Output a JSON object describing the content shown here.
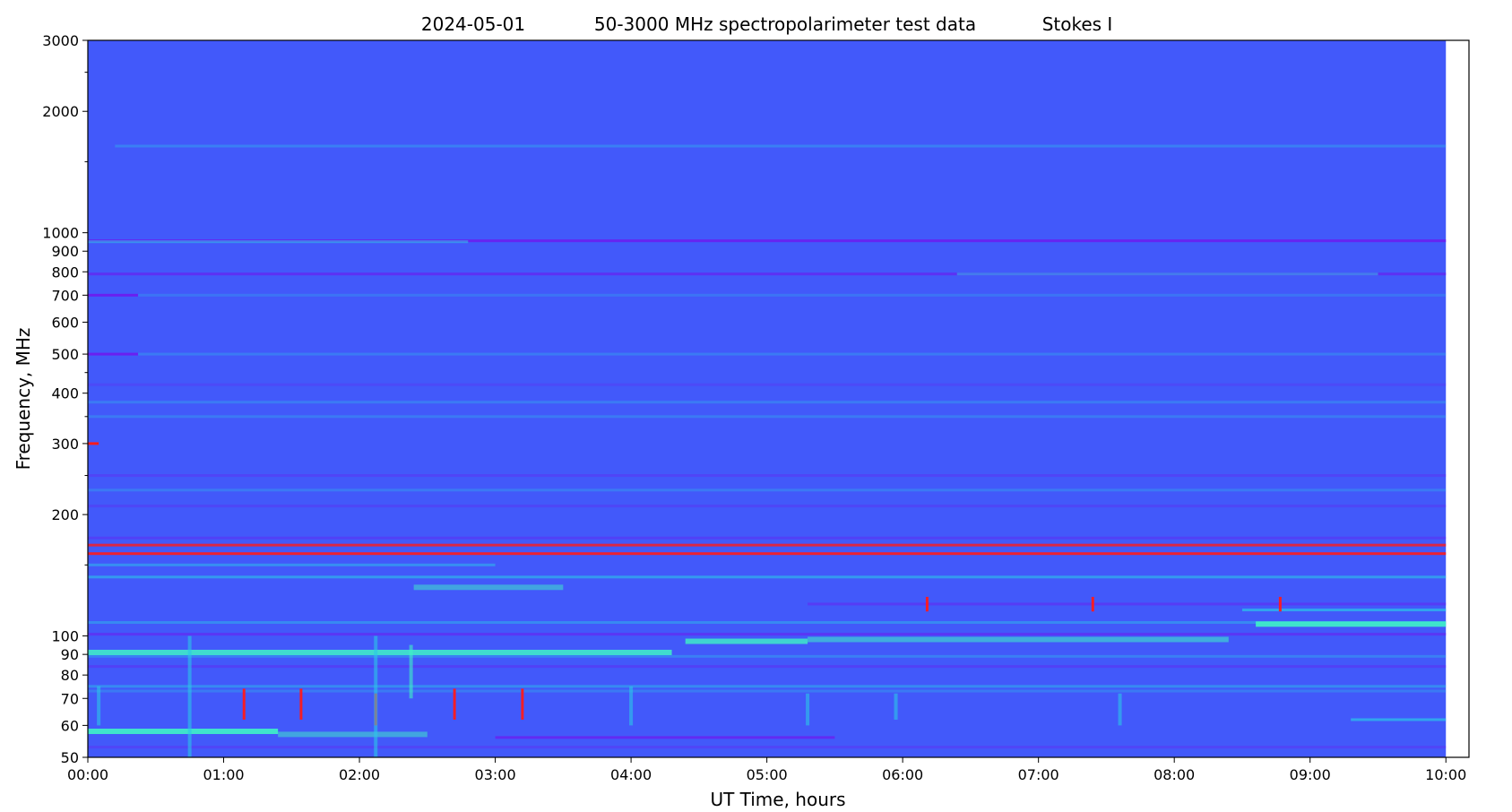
{
  "chart_data": {
    "type": "heatmap",
    "title_parts": [
      "2024-05-01",
      "50-3000 MHz spectropolarimeter test data",
      "Stokes I"
    ],
    "xlabel": "UT Time, hours",
    "ylabel": "Frequency, MHz",
    "x_unit": "hours",
    "xlim": [
      0,
      10.17
    ],
    "ylim": [
      50,
      3000
    ],
    "y_scale": "log",
    "data_x_range": [
      0,
      10
    ],
    "x_ticks": [
      {
        "value": 0,
        "label": "00:00"
      },
      {
        "value": 1,
        "label": "01:00"
      },
      {
        "value": 2,
        "label": "02:00"
      },
      {
        "value": 3,
        "label": "03:00"
      },
      {
        "value": 4,
        "label": "04:00"
      },
      {
        "value": 5,
        "label": "05:00"
      },
      {
        "value": 6,
        "label": "06:00"
      },
      {
        "value": 7,
        "label": "07:00"
      },
      {
        "value": 8,
        "label": "08:00"
      },
      {
        "value": 9,
        "label": "09:00"
      },
      {
        "value": 10,
        "label": "10:00"
      }
    ],
    "y_ticks": [
      {
        "value": 50,
        "label": "50"
      },
      {
        "value": 60,
        "label": "60"
      },
      {
        "value": 70,
        "label": "70"
      },
      {
        "value": 80,
        "label": "80"
      },
      {
        "value": 90,
        "label": "90"
      },
      {
        "value": 100,
        "label": "100"
      },
      {
        "value": 200,
        "label": "200"
      },
      {
        "value": 300,
        "label": "300"
      },
      {
        "value": 400,
        "label": "400"
      },
      {
        "value": 500,
        "label": "500"
      },
      {
        "value": 600,
        "label": "600"
      },
      {
        "value": 700,
        "label": "700"
      },
      {
        "value": 800,
        "label": "800"
      },
      {
        "value": 900,
        "label": "900"
      },
      {
        "value": 1000,
        "label": "1000"
      },
      {
        "value": 2000,
        "label": "2000"
      },
      {
        "value": 3000,
        "label": "3000"
      }
    ],
    "y_minor_ticks": [
      150,
      250,
      350,
      450,
      1500,
      2500
    ],
    "colors": {
      "background": "#4259fa",
      "low": "#6a1ff0",
      "mid": "#2bc6e8",
      "high": "#3ff2c6",
      "peak": "#ff1a1a"
    },
    "bands": [
      {
        "f": 1640,
        "t0": 0.2,
        "t1": 10,
        "level": "mid",
        "opacity": 0.35
      },
      {
        "f": 955,
        "t0": 0,
        "t1": 10,
        "level": "low",
        "opacity": 0.9
      },
      {
        "f": 950,
        "t0": 0,
        "t1": 2.8,
        "level": "mid",
        "opacity": 0.55
      },
      {
        "f": 790,
        "t0": 0,
        "t1": 10,
        "level": "low",
        "opacity": 0.7
      },
      {
        "f": 790,
        "t0": 6.4,
        "t1": 9.5,
        "level": "mid",
        "opacity": 0.5
      },
      {
        "f": 700,
        "t0": 0,
        "t1": 0.37,
        "level": "low",
        "opacity": 1.0
      },
      {
        "f": 700,
        "t0": 0.37,
        "t1": 10,
        "level": "mid",
        "opacity": 0.25
      },
      {
        "f": 500,
        "t0": 0,
        "t1": 0.37,
        "level": "low",
        "opacity": 1.0
      },
      {
        "f": 500,
        "t0": 0.37,
        "t1": 10,
        "level": "mid",
        "opacity": 0.3
      },
      {
        "f": 420,
        "t0": 0,
        "t1": 10,
        "level": "low",
        "opacity": 0.25
      },
      {
        "f": 380,
        "t0": 0,
        "t1": 10,
        "level": "mid",
        "opacity": 0.3
      },
      {
        "f": 350,
        "t0": 0,
        "t1": 10,
        "level": "mid",
        "opacity": 0.3
      },
      {
        "f": 300,
        "t0": 0,
        "t1": 0.08,
        "level": "peak",
        "opacity": 1.0
      },
      {
        "f": 250,
        "t0": 0,
        "t1": 10,
        "level": "low",
        "opacity": 0.35
      },
      {
        "f": 230,
        "t0": 0,
        "t1": 10,
        "level": "mid",
        "opacity": 0.3
      },
      {
        "f": 210,
        "t0": 0,
        "t1": 10,
        "level": "low",
        "opacity": 0.3
      },
      {
        "f": 175,
        "t0": 0,
        "t1": 10,
        "level": "low",
        "opacity": 0.4
      },
      {
        "f": 168,
        "t0": 0,
        "t1": 10,
        "level": "peak",
        "opacity": 0.8
      },
      {
        "f": 160,
        "t0": 0,
        "t1": 10,
        "level": "peak",
        "opacity": 0.9
      },
      {
        "f": 150,
        "t0": 0,
        "t1": 3.0,
        "level": "mid",
        "opacity": 0.5
      },
      {
        "f": 140,
        "t0": 0,
        "t1": 10,
        "level": "mid",
        "opacity": 0.6
      },
      {
        "f": 132,
        "t0": 2.4,
        "t1": 3.5,
        "level": "high",
        "opacity": 0.5
      },
      {
        "f": 120,
        "t0": 5.3,
        "t1": 10,
        "level": "low",
        "opacity": 0.5
      },
      {
        "f": 116,
        "t0": 8.5,
        "t1": 10,
        "level": "mid",
        "opacity": 0.7
      },
      {
        "f": 108,
        "t0": 0,
        "t1": 10,
        "level": "mid",
        "opacity": 0.45
      },
      {
        "f": 107,
        "t0": 8.6,
        "t1": 10,
        "level": "high",
        "opacity": 0.9
      },
      {
        "f": 101,
        "t0": 0,
        "t1": 10,
        "level": "low",
        "opacity": 0.6
      },
      {
        "f": 97,
        "t0": 4.4,
        "t1": 5.3,
        "level": "high",
        "opacity": 0.8
      },
      {
        "f": 98,
        "t0": 5.3,
        "t1": 8.4,
        "level": "high",
        "opacity": 0.55
      },
      {
        "f": 91,
        "t0": 0,
        "t1": 4.3,
        "level": "high",
        "opacity": 0.85
      },
      {
        "f": 89,
        "t0": 0,
        "t1": 10,
        "level": "mid",
        "opacity": 0.35
      },
      {
        "f": 84,
        "t0": 0,
        "t1": 10,
        "level": "low",
        "opacity": 0.4
      },
      {
        "f": 75,
        "t0": 0,
        "t1": 10,
        "level": "mid",
        "opacity": 0.45
      },
      {
        "f": 73,
        "t0": 0,
        "t1": 10,
        "level": "mid",
        "opacity": 0.3
      },
      {
        "f": 62,
        "t0": 9.3,
        "t1": 10,
        "level": "mid",
        "opacity": 0.7
      },
      {
        "f": 58,
        "t0": 0,
        "t1": 1.4,
        "level": "high",
        "opacity": 0.9
      },
      {
        "f": 57,
        "t0": 1.4,
        "t1": 2.5,
        "level": "high",
        "opacity": 0.5
      },
      {
        "f": 56,
        "t0": 3.0,
        "t1": 5.5,
        "level": "low",
        "opacity": 0.8
      },
      {
        "f": 53,
        "t0": 0,
        "t1": 10,
        "level": "low",
        "opacity": 0.35
      }
    ],
    "bursts": [
      {
        "t": 0.08,
        "f0": 60,
        "f1": 75,
        "level": "mid"
      },
      {
        "t": 0.75,
        "f0": 50,
        "f1": 100,
        "level": "mid"
      },
      {
        "t": 1.15,
        "f0": 62,
        "f1": 74,
        "level": "peak"
      },
      {
        "t": 1.57,
        "f0": 62,
        "f1": 74,
        "level": "peak"
      },
      {
        "t": 2.12,
        "f0": 60,
        "f1": 72,
        "level": "peak"
      },
      {
        "t": 2.12,
        "f0": 50,
        "f1": 100,
        "level": "mid"
      },
      {
        "t": 2.38,
        "f0": 70,
        "f1": 95,
        "level": "high"
      },
      {
        "t": 2.7,
        "f0": 62,
        "f1": 74,
        "level": "peak"
      },
      {
        "t": 3.2,
        "f0": 62,
        "f1": 74,
        "level": "peak"
      },
      {
        "t": 4.0,
        "f0": 60,
        "f1": 75,
        "level": "mid"
      },
      {
        "t": 5.3,
        "f0": 60,
        "f1": 72,
        "level": "mid"
      },
      {
        "t": 5.95,
        "f0": 62,
        "f1": 72,
        "level": "mid"
      },
      {
        "t": 6.18,
        "f0": 115,
        "f1": 125,
        "level": "peak"
      },
      {
        "t": 7.4,
        "f0": 115,
        "f1": 125,
        "level": "peak"
      },
      {
        "t": 7.6,
        "f0": 60,
        "f1": 72,
        "level": "mid"
      },
      {
        "t": 8.78,
        "f0": 115,
        "f1": 125,
        "level": "peak"
      }
    ]
  }
}
